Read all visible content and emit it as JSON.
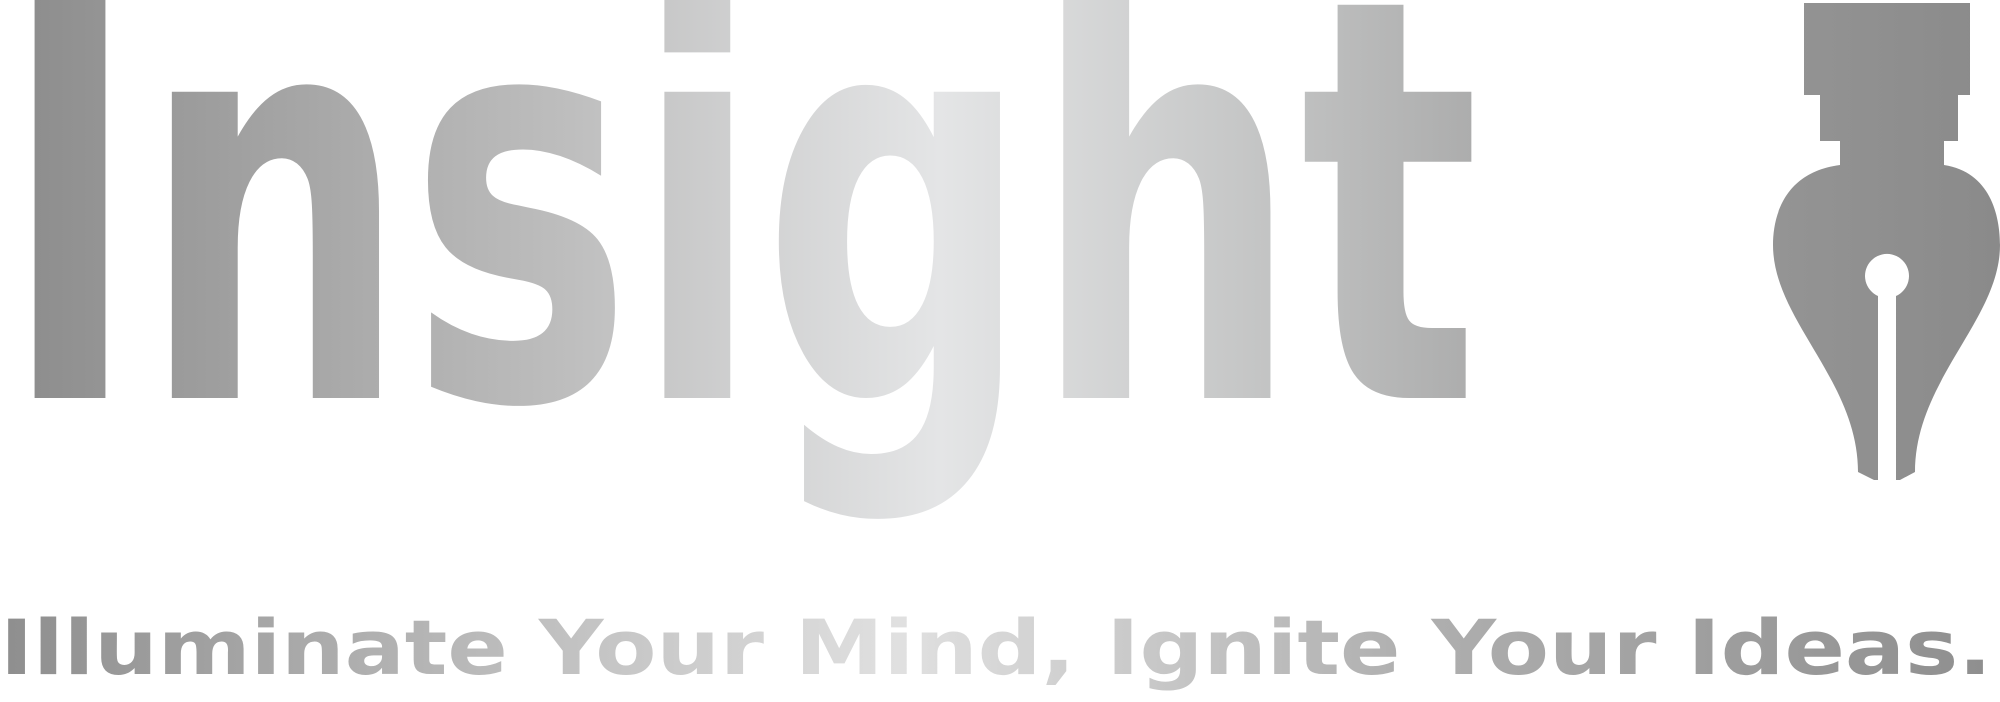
{
  "brand": {
    "name": "Insight",
    "tagline": "Illuminate Your Mind, Ignite Your Ideas.",
    "icon": "fountain-pen-nib-icon"
  },
  "colors": {
    "gradient_dark": "#8c8c8c",
    "gradient_light": "#e3e4e5",
    "tagline_dark": "#8e8e8e",
    "tagline_light": "#dcdcdc"
  }
}
